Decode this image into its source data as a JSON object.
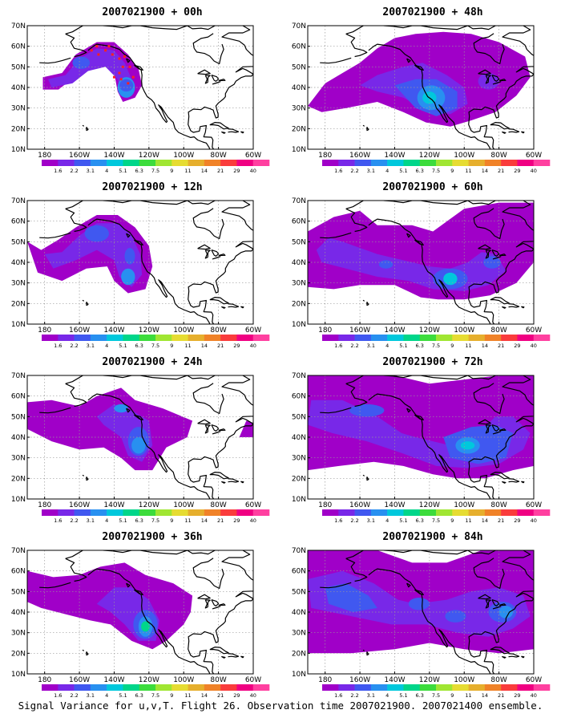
{
  "footer": "Signal Variance for u,v,T. Flight 26. Observation time 2007021900. 2007021400 ensemble.",
  "panels": [
    {
      "title": "2007021900 + 00h",
      "lead": "00h"
    },
    {
      "title": "2007021900 + 48h",
      "lead": "48h"
    },
    {
      "title": "2007021900 + 12h",
      "lead": "12h"
    },
    {
      "title": "2007021900 + 60h",
      "lead": "60h"
    },
    {
      "title": "2007021900 + 24h",
      "lead": "24h"
    },
    {
      "title": "2007021900 + 72h",
      "lead": "72h"
    },
    {
      "title": "2007021900 + 36h",
      "lead": "36h"
    },
    {
      "title": "2007021900 + 84h",
      "lead": "84h"
    }
  ],
  "lat_labels": [
    "70N",
    "60N",
    "50N",
    "40N",
    "30N",
    "20N",
    "10N"
  ],
  "lon_labels": [
    "180",
    "160W",
    "140W",
    "120W",
    "100W",
    "80W",
    "60W"
  ],
  "colorbar": {
    "levels": [
      "1.6",
      "2.2",
      "3.1",
      "4",
      "5.1",
      "6.3",
      "7.5",
      "9",
      "11",
      "14",
      "21",
      "29",
      "40"
    ],
    "colors": [
      "#a000c8",
      "#7828e8",
      "#4058f0",
      "#2890f0",
      "#00c8dc",
      "#00d68a",
      "#3cdc3c",
      "#a0e632",
      "#e6dc32",
      "#e6af2d",
      "#f08228",
      "#fa3c3c",
      "#f00082",
      "#ff40a0"
    ]
  },
  "map_colors": {
    "land_outline": "#000000",
    "grid": "#999999",
    "observation_marks": "#ff2020"
  }
}
